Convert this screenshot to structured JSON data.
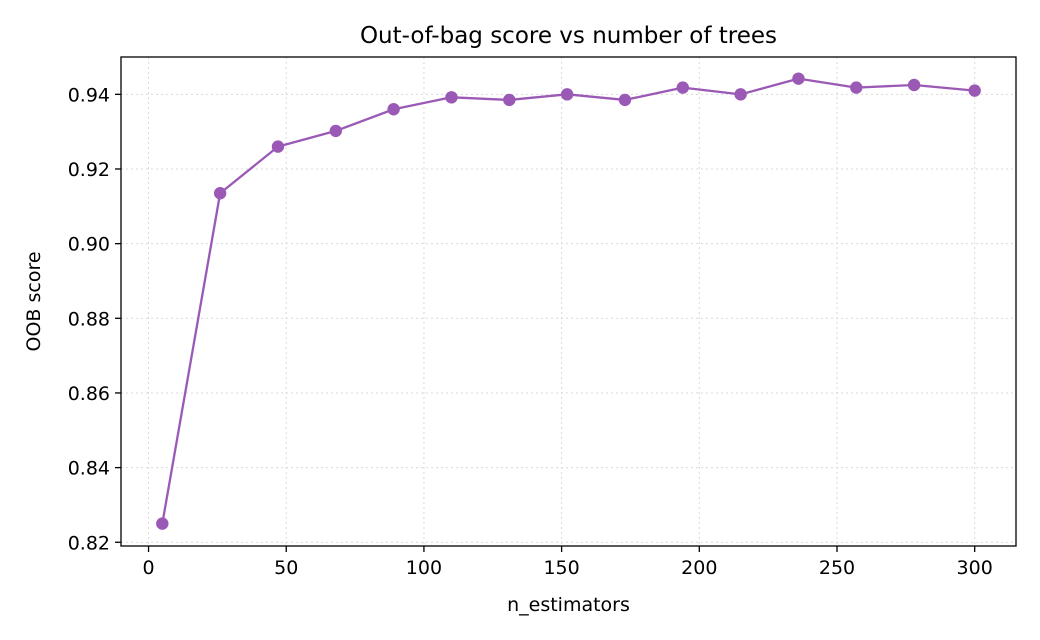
{
  "chart_data": {
    "type": "line",
    "title": "Out-of-bag score vs number of trees",
    "xlabel": "n_estimators",
    "ylabel": "OOB score",
    "xlim": [
      -10,
      315
    ],
    "ylim": [
      0.819,
      0.95
    ],
    "grid": true,
    "x_ticks": [
      0,
      50,
      100,
      150,
      200,
      250,
      300
    ],
    "x_tick_labels": [
      "0",
      "50",
      "100",
      "150",
      "200",
      "250",
      "300"
    ],
    "y_ticks": [
      0.82,
      0.84,
      0.86,
      0.88,
      0.9,
      0.92,
      0.94
    ],
    "y_tick_labels": [
      "0.82",
      "0.84",
      "0.86",
      "0.88",
      "0.90",
      "0.92",
      "0.94"
    ],
    "series": [
      {
        "color": "#9b59b6",
        "marker": "circle",
        "x": [
          5,
          26,
          47,
          68,
          89,
          110,
          131,
          152,
          173,
          194,
          215,
          236,
          257,
          278,
          300
        ],
        "y": [
          0.825,
          0.9135,
          0.926,
          0.9302,
          0.936,
          0.9392,
          0.9385,
          0.94,
          0.9385,
          0.9418,
          0.94,
          0.9442,
          0.9418,
          0.9425,
          0.941
        ]
      }
    ]
  }
}
